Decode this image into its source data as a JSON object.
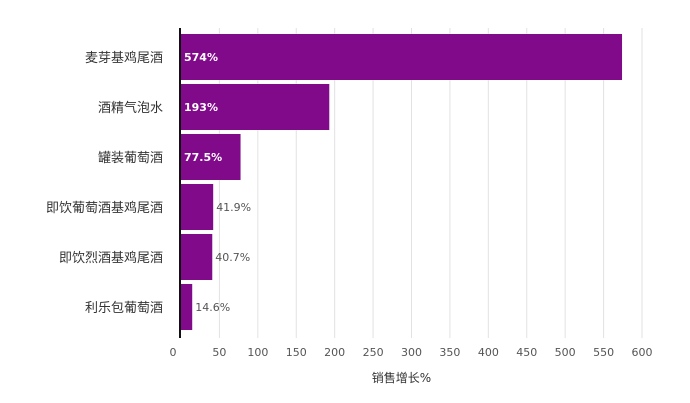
{
  "chart_data": {
    "type": "bar",
    "orientation": "horizontal",
    "categories": [
      "麦芽基鸡尾酒",
      "酒精气泡水",
      "罐装葡萄酒",
      "即饮葡萄酒基鸡尾酒",
      "即饮烈酒基鸡尾酒",
      "利乐包葡萄酒"
    ],
    "values": [
      574,
      193,
      77.5,
      41.9,
      40.7,
      14.6
    ],
    "data_labels": [
      "574%",
      "193%",
      "77.5%",
      "41.9%",
      "40.7%",
      "14.6%"
    ],
    "xlabel": "销售增长%",
    "ylabel": "",
    "xlim": [
      0,
      600
    ],
    "xticks": [
      0,
      50,
      100,
      150,
      200,
      250,
      300,
      350,
      400,
      450,
      500,
      550,
      600
    ],
    "grid": true,
    "bar_color": "#800a8a",
    "legend": "none"
  }
}
